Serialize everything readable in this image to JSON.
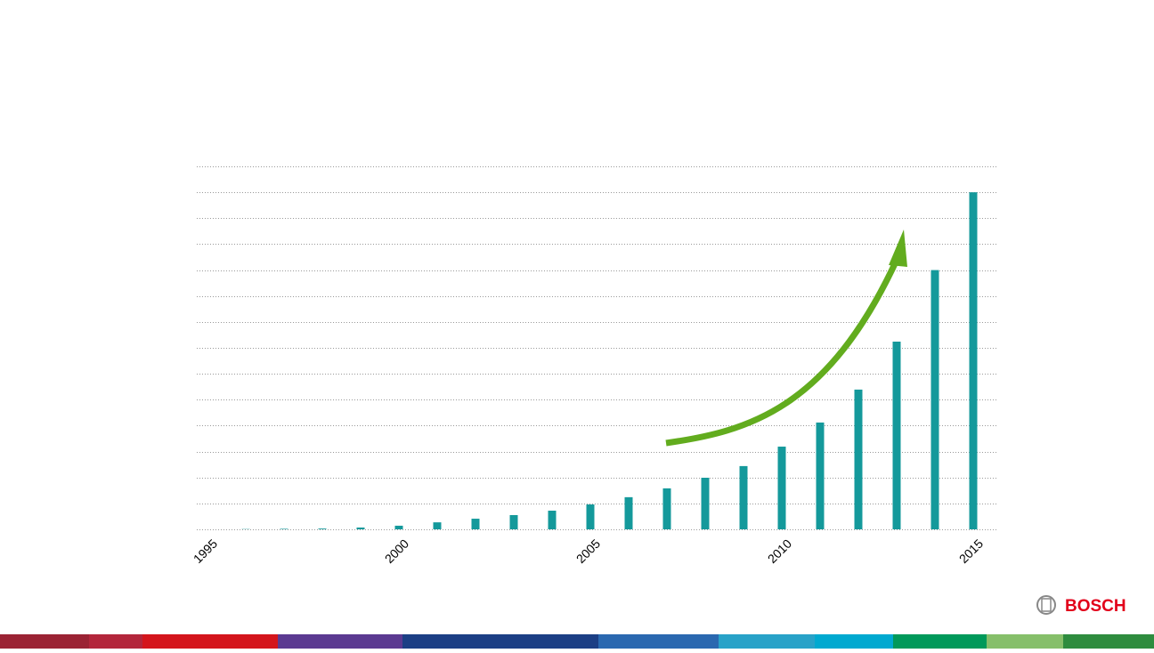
{
  "chart_data": {
    "type": "bar",
    "x": [
      1995,
      1996,
      1997,
      1998,
      1999,
      2000,
      2001,
      2002,
      2003,
      2004,
      2005,
      2006,
      2007,
      2008,
      2009,
      2010,
      2011,
      2012,
      2013,
      2014,
      2015
    ],
    "values": [
      0,
      0.01,
      0.02,
      0.03,
      0.07,
      0.14,
      0.27,
      0.41,
      0.55,
      0.72,
      0.96,
      1.24,
      1.58,
      1.99,
      2.44,
      3.19,
      4.12,
      5.39,
      7.24,
      10,
      13
    ],
    "color": "#14999b",
    "xlim": [
      1995,
      2015
    ],
    "xticks": [
      1995,
      2000,
      2005,
      2010,
      2015
    ],
    "ylim": [
      0,
      14
    ],
    "yticks": [
      0,
      1,
      2,
      3,
      4,
      5,
      6,
      7,
      8,
      9,
      10,
      11,
      12,
      13,
      14
    ],
    "grid": true
  },
  "logo": "BOSCH"
}
